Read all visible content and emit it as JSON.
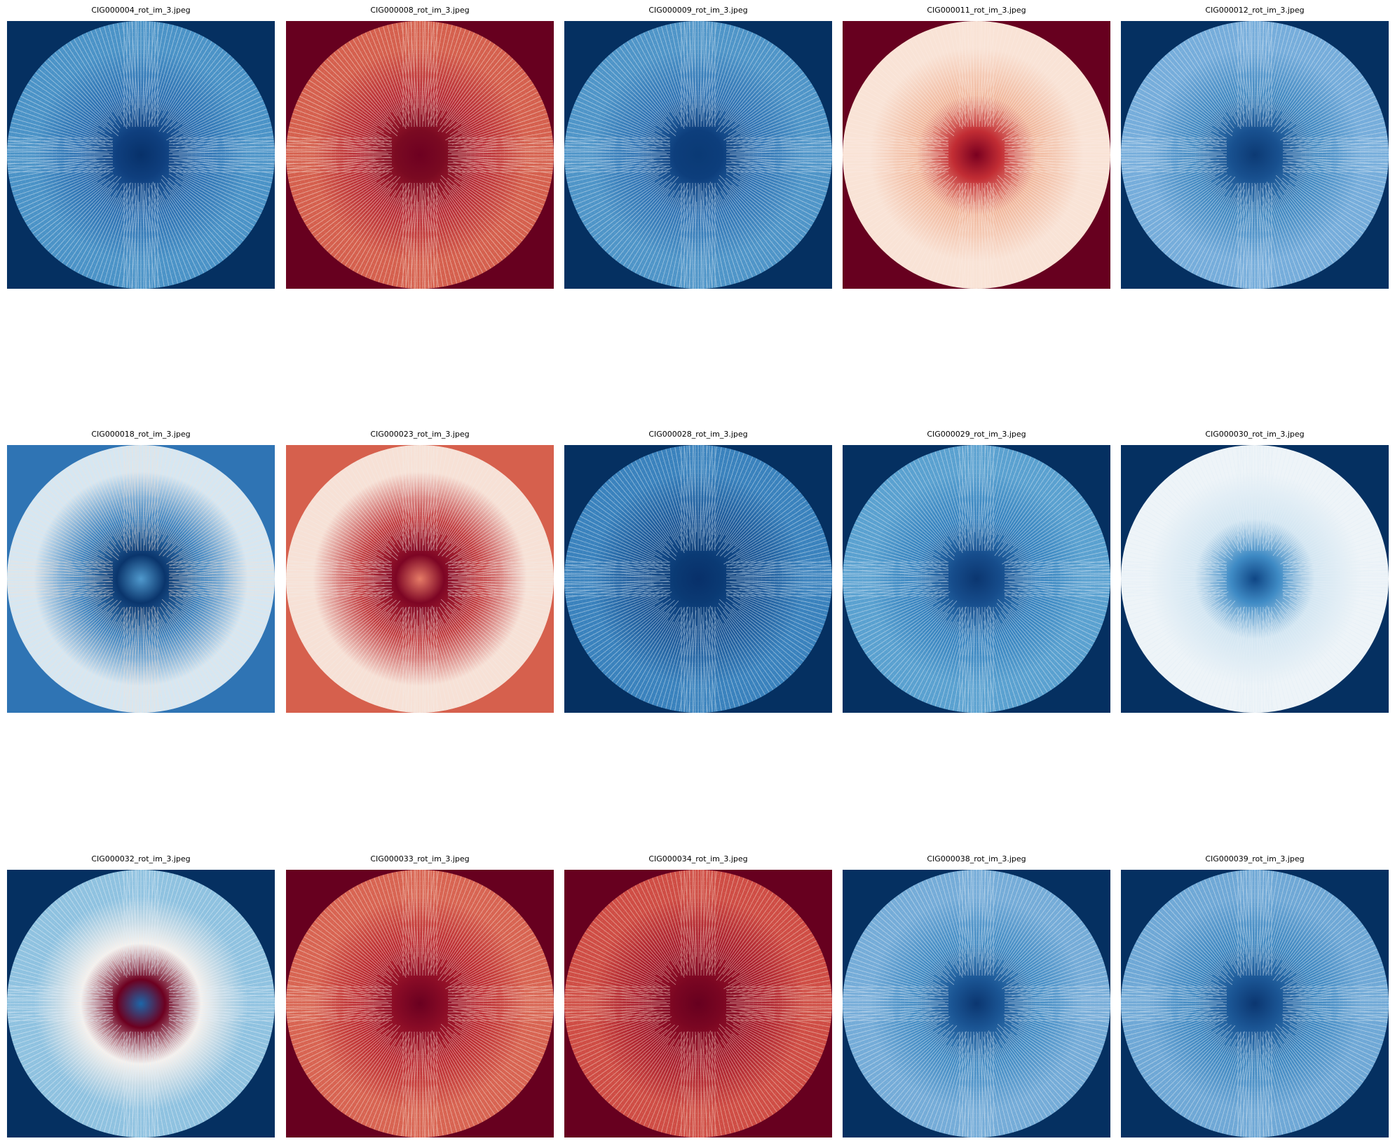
{
  "figure": {
    "panels": [
      {
        "title": "CIG000004_rot_im_3.jpeg",
        "background": "#053061",
        "rings": [
          "#0f3f7e",
          "#2a6eb0",
          "#4b93c7"
        ],
        "core": "#07316a",
        "line": "#d7e6f2"
      },
      {
        "title": "CIG000008_rot_im_3.jpeg",
        "background": "#67001f",
        "rings": [
          "#7a0a22",
          "#b52733",
          "#d5604e"
        ],
        "core": "#6e0021",
        "line": "#f7e2d6"
      },
      {
        "title": "CIG000009_rot_im_3.jpeg",
        "background": "#053061",
        "rings": [
          "#0d3e7c",
          "#2d71b2",
          "#4f95c8"
        ],
        "core": "#0a3a75",
        "line": "#d7e6f2"
      },
      {
        "title": "CIG000011_rot_im_3.jpeg",
        "background": "#67001f",
        "rings": [
          "#c22d34",
          "#f1b89d",
          "#f9e3d6"
        ],
        "core": "#7a0020",
        "line": "#fbece3"
      },
      {
        "title": "CIG000012_rot_im_3.jpeg",
        "background": "#053061",
        "rings": [
          "#18508f",
          "#3f87c0",
          "#76addb"
        ],
        "core": "#0c3a74",
        "line": "#dde9f4"
      },
      {
        "title": "CIG000018_rot_im_3.jpeg",
        "background": "#2f74b4",
        "rings": [
          "#0a356c",
          "#3b82bf",
          "#d6e7f2"
        ],
        "core": "#4f99cd",
        "line": "#f3e2d8"
      },
      {
        "title": "CIG000023_rot_im_3.jpeg",
        "background": "#d6604d",
        "rings": [
          "#7d0524",
          "#c0373b",
          "#f7e1d6"
        ],
        "core": "#e67b66",
        "line": "#f4ece7"
      },
      {
        "title": "CIG000028_rot_im_3.jpeg",
        "background": "#053061",
        "rings": [
          "#0a3a74",
          "#1a5595",
          "#3a82bd"
        ],
        "core": "#08306a",
        "line": "#cfe2f0"
      },
      {
        "title": "CIG000029_rot_im_3.jpeg",
        "background": "#053061",
        "rings": [
          "#164c8b",
          "#3380bd",
          "#5aa1d0"
        ],
        "core": "#0b3670",
        "line": "#d7e6f2"
      },
      {
        "title": "CIG000030_rot_im_3.jpeg",
        "background": "#053061",
        "rings": [
          "#3f8bc5",
          "#d3e6f2",
          "#eef4f8"
        ],
        "core": "#0f4685",
        "line": "#e3eef6"
      },
      {
        "title": "CIG000032_rot_im_3.jpeg",
        "background": "#053061",
        "rings": [
          "#6d0020",
          "#f7f1ec",
          "#8fc2e0"
        ],
        "core": "#1c66a8",
        "line": "#e4eff7"
      },
      {
        "title": "CIG000033_rot_im_3.jpeg",
        "background": "#67001f",
        "rings": [
          "#880b26",
          "#b9262f",
          "#d86452"
        ],
        "core": "#6a0020",
        "line": "#f6dcd0"
      },
      {
        "title": "CIG000034_rot_im_3.jpeg",
        "background": "#67001f",
        "rings": [
          "#7a0622",
          "#a5192b",
          "#cf4d45"
        ],
        "core": "#67001f",
        "line": "#f3d3c4"
      },
      {
        "title": "CIG000038_rot_im_3.jpeg",
        "background": "#053061",
        "rings": [
          "#1a5493",
          "#3f89c2",
          "#75acd8"
        ],
        "core": "#0b3670",
        "line": "#dde9f4"
      },
      {
        "title": "CIG000039_rot_im_3.jpeg",
        "background": "#053061",
        "rings": [
          "#1a5493",
          "#3b85bf",
          "#6fa8d6"
        ],
        "core": "#0b3670",
        "line": "#dbe8f3"
      }
    ]
  }
}
